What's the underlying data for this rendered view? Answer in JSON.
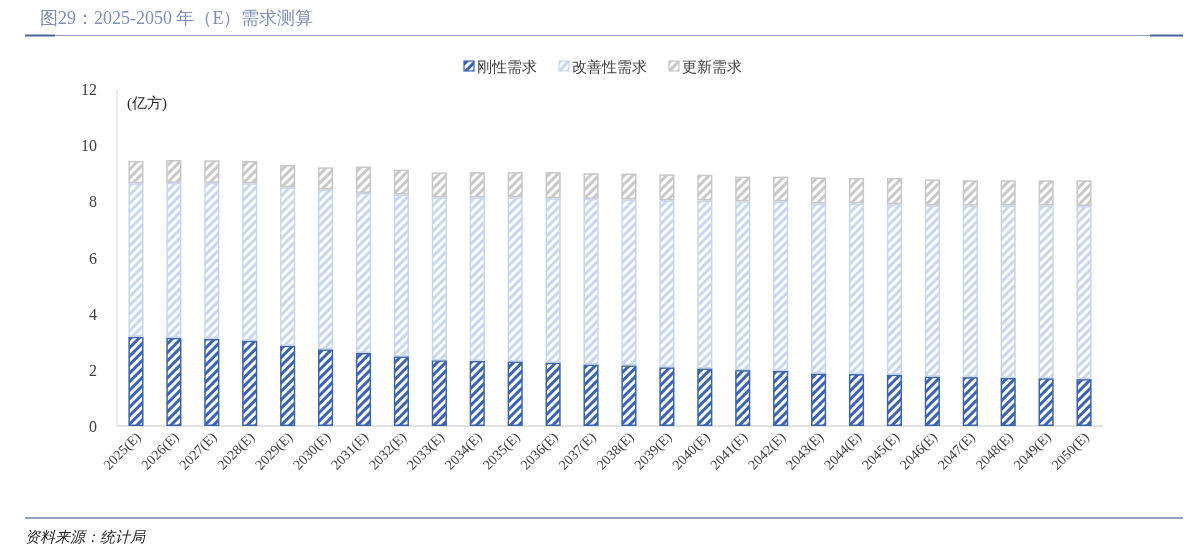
{
  "chart_data": {
    "type": "bar",
    "title": "图29：2025-2050 年（E）需求测算",
    "ylabel": "(亿方)",
    "annotations": [
      "资料来源：统计局"
    ],
    "categories": [
      "2025(E)",
      "2026(E)",
      "2027(E)",
      "2028(E)",
      "2029(E)",
      "2030(E)",
      "2031(E)",
      "2032(E)",
      "2033(E)",
      "2034(E)",
      "2035(E)",
      "2036(E)",
      "2037(E)",
      "2038(E)",
      "2039(E)",
      "2040(E)",
      "2041(E)",
      "2042(E)",
      "2043(E)",
      "2044(E)",
      "2045(E)",
      "2046(E)",
      "2047(E)",
      "2048(E)",
      "2049(E)",
      "2050(E)"
    ],
    "series": [
      {
        "name": "刚性需求",
        "color": "#3b64ad",
        "values": [
          3.18,
          3.14,
          3.1,
          3.04,
          2.86,
          2.73,
          2.6,
          2.48,
          2.34,
          2.32,
          2.3,
          2.26,
          2.19,
          2.16,
          2.09,
          2.05,
          1.99,
          1.96,
          1.87,
          1.85,
          1.83,
          1.76,
          1.74,
          1.71,
          1.7,
          1.67
        ]
      },
      {
        "name": "改善性需求",
        "color": "#c9d7ee",
        "values": [
          5.46,
          5.52,
          5.56,
          5.6,
          5.64,
          5.69,
          5.7,
          5.76,
          5.8,
          5.82,
          5.84,
          5.85,
          5.9,
          5.91,
          5.95,
          5.98,
          6.01,
          6.04,
          6.05,
          6.07,
          6.07,
          6.09,
          6.11,
          6.14,
          6.15,
          6.16
        ]
      },
      {
        "name": "更新需求",
        "color": "#c8c8c8",
        "values": [
          0.8,
          0.81,
          0.8,
          0.8,
          0.79,
          0.79,
          0.94,
          0.89,
          0.89,
          0.9,
          0.9,
          0.93,
          0.91,
          0.92,
          0.92,
          0.92,
          0.88,
          0.88,
          0.93,
          0.91,
          0.93,
          0.93,
          0.9,
          0.9,
          0.9,
          0.92
        ]
      }
    ],
    "stacked": true,
    "ylim": [
      0,
      12
    ],
    "yticks": [
      0,
      2,
      4,
      6,
      8,
      10,
      12
    ],
    "legend": "top"
  }
}
